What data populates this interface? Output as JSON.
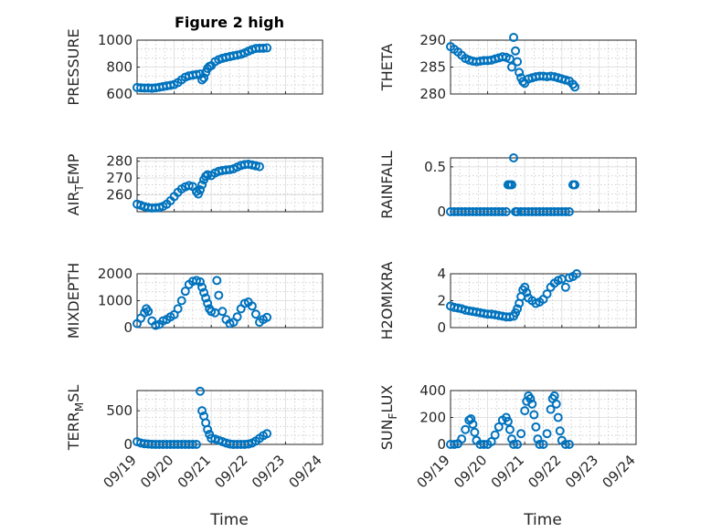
{
  "figure_title": "Figure 2 high",
  "colors": {
    "marker": "#0072BD",
    "axis": "#262626",
    "grid": "#dedede"
  },
  "x_ticks": [
    "09/19",
    "09/20",
    "09/21",
    "09/22",
    "09/23",
    "09/24"
  ],
  "x_label": "Time",
  "chart_data": [
    {
      "type": "scatter",
      "ylabel": "PRESSURE",
      "ylim": [
        600,
        1000
      ],
      "yticks": [
        "600",
        "800",
        "1000"
      ],
      "xlim": [
        "09/19",
        "09/24"
      ],
      "grid": true,
      "points": [
        [
          0,
          648
        ],
        [
          0.1,
          646
        ],
        [
          0.2,
          644
        ],
        [
          0.3,
          645
        ],
        [
          0.4,
          643
        ],
        [
          0.5,
          646
        ],
        [
          0.6,
          650
        ],
        [
          0.7,
          655
        ],
        [
          0.8,
          660
        ],
        [
          0.9,
          664
        ],
        [
          1.0,
          670
        ],
        [
          1.1,
          685
        ],
        [
          1.2,
          705
        ],
        [
          1.3,
          725
        ],
        [
          1.4,
          735
        ],
        [
          1.5,
          740
        ],
        [
          1.6,
          745
        ],
        [
          1.7,
          748
        ],
        [
          1.75,
          705
        ],
        [
          1.8,
          720
        ],
        [
          1.85,
          760
        ],
        [
          1.9,
          790
        ],
        [
          1.95,
          805
        ],
        [
          2.0,
          810
        ],
        [
          2.1,
          840
        ],
        [
          2.2,
          855
        ],
        [
          2.3,
          865
        ],
        [
          2.4,
          872
        ],
        [
          2.5,
          878
        ],
        [
          2.6,
          884
        ],
        [
          2.7,
          889
        ],
        [
          2.8,
          895
        ],
        [
          2.9,
          905
        ],
        [
          3.0,
          918
        ],
        [
          3.1,
          930
        ],
        [
          3.2,
          938
        ],
        [
          3.3,
          940
        ],
        [
          3.4,
          940
        ],
        [
          3.5,
          942
        ]
      ]
    },
    {
      "type": "scatter",
      "ylabel": "THETA",
      "ylim": [
        280,
        290
      ],
      "yticks": [
        "280",
        "285",
        "290"
      ],
      "xlim": [
        "09/19",
        "09/24"
      ],
      "grid": true,
      "points": [
        [
          0,
          288.8
        ],
        [
          0.1,
          288.3
        ],
        [
          0.2,
          287.8
        ],
        [
          0.3,
          287.2
        ],
        [
          0.4,
          286.6
        ],
        [
          0.5,
          286.3
        ],
        [
          0.6,
          286.1
        ],
        [
          0.7,
          286.0
        ],
        [
          0.8,
          286.1
        ],
        [
          0.9,
          286.2
        ],
        [
          1.0,
          286.2
        ],
        [
          1.1,
          286.3
        ],
        [
          1.2,
          286.5
        ],
        [
          1.3,
          286.7
        ],
        [
          1.4,
          286.9
        ],
        [
          1.5,
          286.8
        ],
        [
          1.6,
          286.5
        ],
        [
          1.65,
          285.0
        ],
        [
          1.7,
          290.5
        ],
        [
          1.75,
          288.0
        ],
        [
          1.8,
          286.0
        ],
        [
          1.85,
          284.0
        ],
        [
          1.9,
          283.0
        ],
        [
          1.95,
          282.3
        ],
        [
          2.0,
          282.0
        ],
        [
          2.1,
          282.8
        ],
        [
          2.2,
          283.0
        ],
        [
          2.3,
          283.2
        ],
        [
          2.4,
          283.3
        ],
        [
          2.5,
          283.3
        ],
        [
          2.6,
          283.2
        ],
        [
          2.7,
          283.3
        ],
        [
          2.8,
          283.2
        ],
        [
          2.9,
          283.0
        ],
        [
          3.0,
          282.8
        ],
        [
          3.1,
          282.6
        ],
        [
          3.2,
          282.4
        ],
        [
          3.3,
          281.8
        ],
        [
          3.35,
          281.3
        ]
      ]
    },
    {
      "type": "scatter",
      "ylabel": "AIR_TEMP",
      "ylabel_main": "AIR",
      "ylabel_sub": "T",
      "ylabel_tail": "EMP",
      "ylim": [
        250,
        282
      ],
      "yticks": [
        "260",
        "270",
        "280"
      ],
      "xlim": [
        "09/19",
        "09/24"
      ],
      "grid": true,
      "points": [
        [
          0,
          254.5
        ],
        [
          0.1,
          253.8
        ],
        [
          0.2,
          253.0
        ],
        [
          0.3,
          252.5
        ],
        [
          0.4,
          252.2
        ],
        [
          0.5,
          252.3
        ],
        [
          0.6,
          252.5
        ],
        [
          0.7,
          253.2
        ],
        [
          0.8,
          254.5
        ],
        [
          0.9,
          256.5
        ],
        [
          1.0,
          259.0
        ],
        [
          1.1,
          261.5
        ],
        [
          1.2,
          263.5
        ],
        [
          1.3,
          264.8
        ],
        [
          1.4,
          265.5
        ],
        [
          1.5,
          265.0
        ],
        [
          1.6,
          262.0
        ],
        [
          1.65,
          260.5
        ],
        [
          1.7,
          263.0
        ],
        [
          1.75,
          266.0
        ],
        [
          1.8,
          269.0
        ],
        [
          1.85,
          271.0
        ],
        [
          1.9,
          272.0
        ],
        [
          2.0,
          271.5
        ],
        [
          2.1,
          273.0
        ],
        [
          2.2,
          274.0
        ],
        [
          2.3,
          274.5
        ],
        [
          2.4,
          274.8
        ],
        [
          2.5,
          275.0
        ],
        [
          2.6,
          275.5
        ],
        [
          2.7,
          276.5
        ],
        [
          2.8,
          277.5
        ],
        [
          2.9,
          278.0
        ],
        [
          3.0,
          278.2
        ],
        [
          3.1,
          277.8
        ],
        [
          3.2,
          277.3
        ],
        [
          3.3,
          276.8
        ]
      ]
    },
    {
      "type": "scatter",
      "ylabel": "RAINFALL",
      "ylim": [
        0,
        0.6
      ],
      "yticks": [
        "0",
        "0.5"
      ],
      "xlim": [
        "09/19",
        "09/24"
      ],
      "grid": true,
      "points": [
        [
          0,
          0
        ],
        [
          0.1,
          0
        ],
        [
          0.2,
          0
        ],
        [
          0.3,
          0
        ],
        [
          0.4,
          0
        ],
        [
          0.5,
          0
        ],
        [
          0.6,
          0
        ],
        [
          0.7,
          0
        ],
        [
          0.8,
          0
        ],
        [
          0.9,
          0
        ],
        [
          1.0,
          0
        ],
        [
          1.1,
          0
        ],
        [
          1.2,
          0
        ],
        [
          1.3,
          0
        ],
        [
          1.4,
          0
        ],
        [
          1.5,
          0
        ],
        [
          1.55,
          0.3
        ],
        [
          1.6,
          0.3
        ],
        [
          1.65,
          0.3
        ],
        [
          1.7,
          0.6
        ],
        [
          1.75,
          0
        ],
        [
          1.8,
          0
        ],
        [
          1.9,
          0
        ],
        [
          2.0,
          0
        ],
        [
          2.1,
          0
        ],
        [
          2.2,
          0
        ],
        [
          2.3,
          0
        ],
        [
          2.4,
          0
        ],
        [
          2.5,
          0
        ],
        [
          2.6,
          0
        ],
        [
          2.7,
          0
        ],
        [
          2.8,
          0
        ],
        [
          2.9,
          0
        ],
        [
          3.0,
          0
        ],
        [
          3.1,
          0
        ],
        [
          3.2,
          0
        ],
        [
          3.3,
          0.3
        ],
        [
          3.35,
          0.3
        ]
      ]
    },
    {
      "type": "scatter",
      "ylabel": "MIXDEPTH",
      "ylim": [
        0,
        2000
      ],
      "yticks": [
        "0",
        "1000",
        "2000"
      ],
      "xlim": [
        "09/19",
        "09/24"
      ],
      "grid": true,
      "points": [
        [
          0,
          150
        ],
        [
          0.1,
          350
        ],
        [
          0.2,
          550
        ],
        [
          0.25,
          700
        ],
        [
          0.3,
          600
        ],
        [
          0.4,
          250
        ],
        [
          0.5,
          80
        ],
        [
          0.6,
          120
        ],
        [
          0.7,
          250
        ],
        [
          0.8,
          300
        ],
        [
          0.9,
          400
        ],
        [
          1.0,
          480
        ],
        [
          1.1,
          700
        ],
        [
          1.2,
          1000
        ],
        [
          1.3,
          1350
        ],
        [
          1.4,
          1600
        ],
        [
          1.5,
          1720
        ],
        [
          1.6,
          1750
        ],
        [
          1.7,
          1700
        ],
        [
          1.75,
          1500
        ],
        [
          1.8,
          1300
        ],
        [
          1.85,
          1100
        ],
        [
          1.9,
          900
        ],
        [
          1.95,
          700
        ],
        [
          2.0,
          600
        ],
        [
          2.1,
          550
        ],
        [
          2.15,
          1750
        ],
        [
          2.2,
          1200
        ],
        [
          2.3,
          600
        ],
        [
          2.4,
          300
        ],
        [
          2.5,
          150
        ],
        [
          2.6,
          200
        ],
        [
          2.7,
          400
        ],
        [
          2.8,
          700
        ],
        [
          2.9,
          900
        ],
        [
          3.0,
          950
        ],
        [
          3.1,
          800
        ],
        [
          3.2,
          500
        ],
        [
          3.3,
          200
        ],
        [
          3.4,
          300
        ],
        [
          3.5,
          380
        ]
      ]
    },
    {
      "type": "scatter",
      "ylabel": "H2OMIXRA",
      "ylim": [
        0,
        4
      ],
      "yticks": [
        "0",
        "2",
        "4"
      ],
      "xlim": [
        "09/19",
        "09/24"
      ],
      "grid": true,
      "points": [
        [
          0,
          1.6
        ],
        [
          0.1,
          1.5
        ],
        [
          0.2,
          1.45
        ],
        [
          0.3,
          1.4
        ],
        [
          0.4,
          1.3
        ],
        [
          0.5,
          1.25
        ],
        [
          0.6,
          1.2
        ],
        [
          0.7,
          1.15
        ],
        [
          0.8,
          1.1
        ],
        [
          0.9,
          1.05
        ],
        [
          1.0,
          1.0
        ],
        [
          1.1,
          1.0
        ],
        [
          1.2,
          0.95
        ],
        [
          1.3,
          0.9
        ],
        [
          1.4,
          0.85
        ],
        [
          1.5,
          0.8
        ],
        [
          1.6,
          0.8
        ],
        [
          1.7,
          0.85
        ],
        [
          1.75,
          1.1
        ],
        [
          1.8,
          1.4
        ],
        [
          1.85,
          1.8
        ],
        [
          1.9,
          2.3
        ],
        [
          1.95,
          2.8
        ],
        [
          2.0,
          3.0
        ],
        [
          2.05,
          2.6
        ],
        [
          2.1,
          2.2
        ],
        [
          2.2,
          2.0
        ],
        [
          2.3,
          1.8
        ],
        [
          2.4,
          1.9
        ],
        [
          2.5,
          2.1
        ],
        [
          2.6,
          2.5
        ],
        [
          2.7,
          3.0
        ],
        [
          2.8,
          3.3
        ],
        [
          2.9,
          3.5
        ],
        [
          3.0,
          3.6
        ],
        [
          3.1,
          3.0
        ],
        [
          3.2,
          3.7
        ],
        [
          3.3,
          3.8
        ],
        [
          3.4,
          4.0
        ]
      ]
    },
    {
      "type": "scatter",
      "ylabel": "TERR_MSL",
      "ylabel_main": "TERR",
      "ylabel_sub": "M",
      "ylabel_tail": "SL",
      "ylim": [
        0,
        800
      ],
      "yticks": [
        "0",
        "500"
      ],
      "xlim": [
        "09/19",
        "09/24"
      ],
      "grid": true,
      "points": [
        [
          0,
          40
        ],
        [
          0.1,
          20
        ],
        [
          0.2,
          10
        ],
        [
          0.3,
          5
        ],
        [
          0.4,
          2
        ],
        [
          0.5,
          0
        ],
        [
          0.6,
          0
        ],
        [
          0.7,
          0
        ],
        [
          0.8,
          0
        ],
        [
          0.9,
          0
        ],
        [
          1.0,
          0
        ],
        [
          1.1,
          0
        ],
        [
          1.2,
          0
        ],
        [
          1.3,
          0
        ],
        [
          1.4,
          0
        ],
        [
          1.5,
          0
        ],
        [
          1.6,
          0
        ],
        [
          1.7,
          790
        ],
        [
          1.75,
          500
        ],
        [
          1.8,
          420
        ],
        [
          1.85,
          320
        ],
        [
          1.9,
          220
        ],
        [
          1.95,
          150
        ],
        [
          2.0,
          90
        ],
        [
          2.1,
          80
        ],
        [
          2.2,
          60
        ],
        [
          2.3,
          40
        ],
        [
          2.4,
          20
        ],
        [
          2.5,
          5
        ],
        [
          2.6,
          0
        ],
        [
          2.7,
          0
        ],
        [
          2.8,
          0
        ],
        [
          2.9,
          0
        ],
        [
          3.0,
          5
        ],
        [
          3.1,
          20
        ],
        [
          3.2,
          50
        ],
        [
          3.3,
          90
        ],
        [
          3.4,
          130
        ],
        [
          3.5,
          160
        ]
      ]
    },
    {
      "type": "scatter",
      "ylabel": "SUN_FLUX",
      "ylabel_main": "SUN",
      "ylabel_sub": "F",
      "ylabel_tail": "LUX",
      "ylim": [
        0,
        400
      ],
      "yticks": [
        "0",
        "200",
        "400"
      ],
      "xlim": [
        "09/19",
        "09/24"
      ],
      "grid": true,
      "points": [
        [
          0,
          0
        ],
        [
          0.1,
          0
        ],
        [
          0.2,
          5
        ],
        [
          0.3,
          40
        ],
        [
          0.4,
          110
        ],
        [
          0.5,
          180
        ],
        [
          0.55,
          190
        ],
        [
          0.6,
          150
        ],
        [
          0.65,
          90
        ],
        [
          0.7,
          30
        ],
        [
          0.8,
          0
        ],
        [
          0.9,
          0
        ],
        [
          1.0,
          0
        ],
        [
          1.1,
          20
        ],
        [
          1.2,
          70
        ],
        [
          1.3,
          130
        ],
        [
          1.4,
          180
        ],
        [
          1.5,
          200
        ],
        [
          1.55,
          170
        ],
        [
          1.6,
          110
        ],
        [
          1.65,
          40
        ],
        [
          1.7,
          0
        ],
        [
          1.8,
          0
        ],
        [
          1.9,
          80
        ],
        [
          2.0,
          250
        ],
        [
          2.05,
          320
        ],
        [
          2.1,
          360
        ],
        [
          2.15,
          340
        ],
        [
          2.2,
          300
        ],
        [
          2.25,
          220
        ],
        [
          2.3,
          130
        ],
        [
          2.35,
          40
        ],
        [
          2.4,
          0
        ],
        [
          2.5,
          0
        ],
        [
          2.6,
          80
        ],
        [
          2.7,
          260
        ],
        [
          2.75,
          340
        ],
        [
          2.8,
          360
        ],
        [
          2.85,
          300
        ],
        [
          2.9,
          200
        ],
        [
          2.95,
          100
        ],
        [
          3.0,
          30
        ],
        [
          3.1,
          0
        ],
        [
          3.2,
          0
        ]
      ]
    }
  ]
}
